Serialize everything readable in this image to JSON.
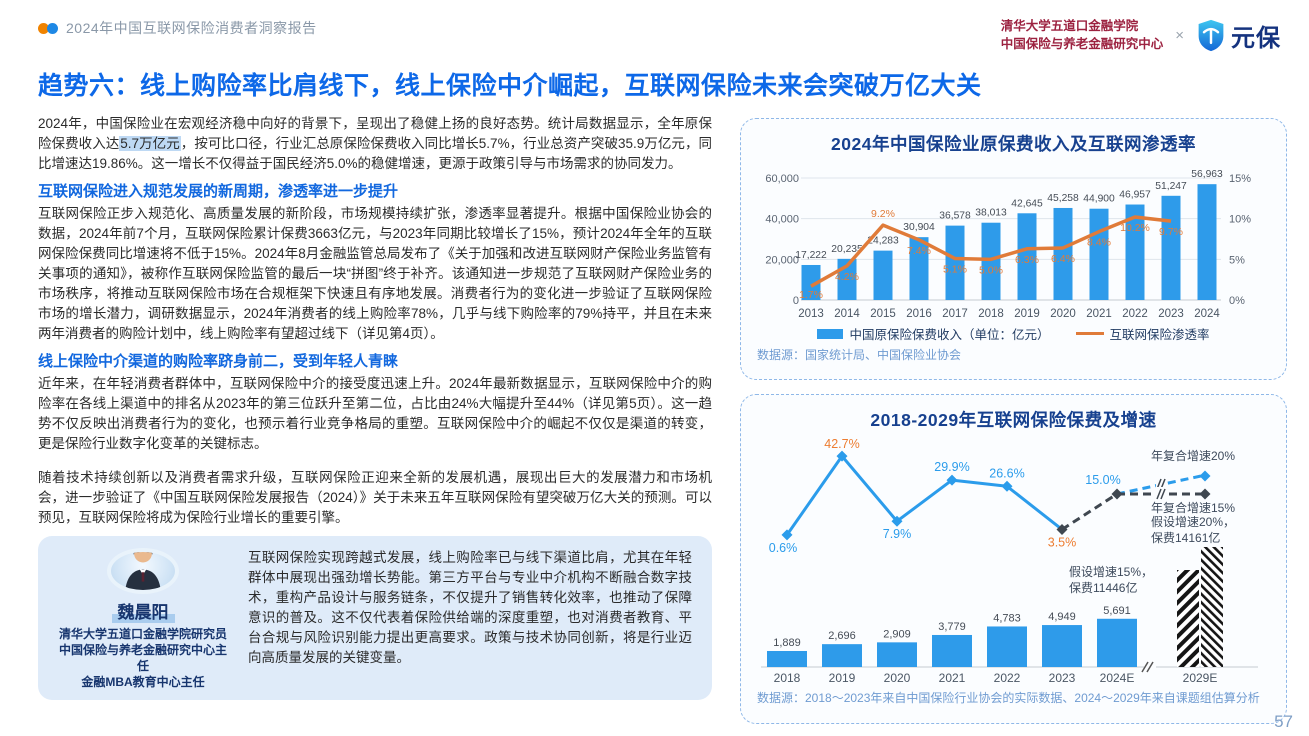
{
  "page": {
    "number": "57"
  },
  "colors": {
    "accent_blue": "#0D68E8",
    "bar_blue": "#2E9BEA",
    "line_orange": "#E07B39",
    "label_blue": "#2B9CEB",
    "label_orange": "#ED7D31",
    "highlight": "#BED9F4",
    "org_red": "#9C2240"
  },
  "header": {
    "report_title": "2024年中国互联网保险消费者洞察报告",
    "org_line1": "清华大学五道口金融学院",
    "org_line2": "中国保险与养老金融研究中心",
    "cross": "×",
    "brand": "元保"
  },
  "title": "趋势六：线上购险率比肩线下，线上保险中介崛起，互联网保险未来会突破万亿大关",
  "body": {
    "p1_before": "2024年，中国保险业在宏观经济稳中向好的背景下，呈现出了稳健上扬的良好态势。统计局数据显示，全年原保险保费收入达",
    "p1_highlight": "5.7万亿元",
    "p1_after": "，按可比口径，行业汇总原保险保费收入同比增长5.7%，行业总资产突破35.9万亿元，同比增速达19.86%。这一增长不仅得益于国民经济5.0%的稳健增速，更源于政策引导与市场需求的协同发力。",
    "h2_1": "互联网保险进入规范发展的新周期，渗透率进一步提升",
    "p2": "互联网保险正步入规范化、高质量发展的新阶段，市场规模持续扩张，渗透率显著提升。根据中国保险业协会的数据，2024年前7个月，互联网保险累计保费3663亿元，与2023年同期比较增长了15%，预计2024年全年的互联网保险保费同比增速将不低于15%。2024年8月金融监管总局发布了《关于加强和改进互联网财产保险业务监管有关事项的通知》，被称作互联网保险监管的最后一块“拼图”终于补齐。该通知进一步规范了互联网财产保险业务的市场秩序，将推动互联网保险市场在合规框架下快速且有序地发展。消费者行为的变化进一步验证了互联网保险市场的增长潜力，调研数据显示，2024年消费者的线上购险率78%，几乎与线下购险率的79%持平，并且在未来两年消费者的购险计划中，线上购险率有望超过线下（详见第4页）。",
    "h2_2": "线上保险中介渠道的购险率跻身前二，受到年轻人青睐",
    "p3": "近年来，在年轻消费者群体中，互联网保险中介的接受度迅速上升。2024年最新数据显示，互联网保险中介的购险率在各线上渠道中的排名从2023年的第三位跃升至第二位，占比由24%大幅提升至44%（详见第5页）。这一趋势不仅反映出消费者行为的变化，也预示着行业竞争格局的重塑。互联网保险中介的崛起不仅仅是渠道的转变，更是保险行业数字化变革的关键标志。",
    "p4": "随着技术持续创新以及消费者需求升级，互联网保险正迎来全新的发展机遇，展现出巨大的发展潜力和市场机会，进一步验证了《中国互联网保险发展报告（2024）》关于未来五年互联网保险有望突破万亿大关的预测。可以预见，互联网保险将成为保险行业增长的重要引擎。"
  },
  "expert": {
    "name": "魏晨阳",
    "titles": [
      "清华大学五道口金融学院研究员",
      "中国保险与养老金融研究中心主任",
      "金融MBA教育中心主任"
    ],
    "quote": "互联网保险实现跨越式发展，线上购险率已与线下渠道比肩，尤其在年轻群体中展现出强劲增长势能。第三方平台与专业中介机构不断融合数字技术，重构产品设计与服务链条，不仅提升了销售转化效率，也推动了保障意识的普及。这不仅代表着保险供给端的深度重塑，也对消费者教育、平台合规与风险识别能力提出更高要求。政策与技术协同创新，将是行业迈向高质量发展的关键变量。"
  },
  "chart_data": [
    {
      "type": "bar",
      "subtype": "combo-bar-line",
      "title": "2024年中国保险业原保费收入及互联网渗透率",
      "categories": [
        "2013",
        "2014",
        "2015",
        "2016",
        "2017",
        "2018",
        "2019",
        "2020",
        "2021",
        "2022",
        "2023",
        "2024"
      ],
      "series": [
        {
          "name": "中国原保险保费收入（单位：亿元）",
          "kind": "bar",
          "color": "#2E9BEA",
          "values": [
            17222,
            20235,
            24283,
            30904,
            36578,
            38013,
            42645,
            45258,
            44900,
            46957,
            51247,
            56963
          ],
          "labels": [
            "17,222",
            "20,235",
            "24,283",
            "30,904",
            "36,578",
            "38,013",
            "42,645",
            "45,258",
            "44,900",
            "46,957",
            "51,247",
            "56,963"
          ]
        },
        {
          "name": "互联网保险渗透率",
          "kind": "line",
          "color": "#E07B39",
          "values": [
            1.7,
            4.2,
            9.2,
            7.4,
            5.1,
            5.0,
            6.3,
            6.4,
            8.4,
            10.2,
            9.7,
            null
          ],
          "labels": [
            "1.7%",
            "4.2%",
            "9.2%",
            "7.4%",
            "5.1%",
            "5.0%",
            "6.3%",
            "6.4%",
            "8.4%",
            "10.2%",
            "9.7%",
            ""
          ]
        }
      ],
      "left_axis": {
        "ticks": [
          "0",
          "20,000",
          "40,000",
          "60,000"
        ],
        "max": 60000
      },
      "right_axis": {
        "ticks": [
          "0%",
          "5%",
          "10%",
          "15%"
        ],
        "max": 15
      },
      "grid": true,
      "legend_position": "bottom",
      "source": "数据源：国家统计局、中国保险业协会"
    },
    {
      "type": "bar",
      "subtype": "bars-with-growth-line-projection",
      "title": "2018-2029年互联网保险保费及增速",
      "categories": [
        "2018",
        "2019",
        "2020",
        "2021",
        "2022",
        "2023",
        "2024E",
        "2029E"
      ],
      "bars": {
        "color": "#2E9BEA",
        "values": [
          1889,
          2696,
          2909,
          3779,
          4783,
          4949,
          5691
        ],
        "labels": [
          "1,889",
          "2,696",
          "2,909",
          "3,779",
          "4,783",
          "4,949",
          "5,691"
        ]
      },
      "scenario_bars": [
        {
          "label_line1": "假设增速15%，",
          "label_line2": "保费11446亿",
          "value": 11446,
          "hatch": "backslash"
        },
        {
          "label_line1": "假设增速20%，",
          "label_line2": "保费14161亿",
          "value": 14161,
          "hatch": "slash"
        }
      ],
      "growth": {
        "points": [
          {
            "x": "2018",
            "v": 0.6,
            "label": "0.6%",
            "color": "#2B9CEB"
          },
          {
            "x": "2019",
            "v": 42.7,
            "label": "42.7%",
            "color": "#ED7D31"
          },
          {
            "x": "2020",
            "v": 7.9,
            "label": "7.9%",
            "color": "#2B9CEB"
          },
          {
            "x": "2021",
            "v": 29.9,
            "label": "29.9%",
            "color": "#2B9CEB"
          },
          {
            "x": "2022",
            "v": 26.6,
            "label": "26.6%",
            "color": "#2B9CEB"
          },
          {
            "x": "2023",
            "v": 3.5,
            "label": "3.5%",
            "color": "#ED7D31"
          },
          {
            "x": "2024E",
            "v": 15.0,
            "label": "15.0%",
            "color": "#2B9CEB"
          }
        ]
      },
      "projections": [
        {
          "label": "年复合增速20%",
          "color": "#2B9CEB"
        },
        {
          "label": "年复合增速15%",
          "color": "#3F4750"
        }
      ],
      "axis_break": "//",
      "source": "数据源：2018～2023年来自中国保险行业协会的实际数据、2024～2029年来自课题组估算分析"
    }
  ]
}
